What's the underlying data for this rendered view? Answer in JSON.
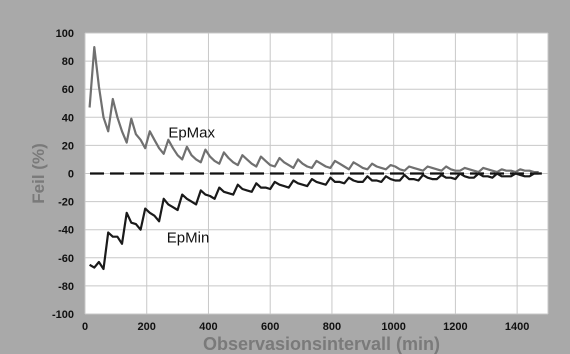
{
  "chart_data": {
    "type": "line",
    "title": "",
    "xlabel": "Observasionsintervall (min)",
    "ylabel": "Feil (%)",
    "xlim": [
      0,
      1500
    ],
    "ylim": [
      -100,
      100
    ],
    "xticks": [
      0,
      200,
      400,
      600,
      800,
      1000,
      1200,
      1400
    ],
    "yticks": [
      -100,
      -80,
      -60,
      -40,
      -20,
      0,
      20,
      40,
      60,
      80,
      100
    ],
    "grid": true,
    "legend": "none",
    "colors": {
      "epmax": "#707070",
      "epmin": "#1a1a1a",
      "zero_line": "#111111",
      "background": "#a9a9a9",
      "plot_area": "#ffffff",
      "grid": "#c8c8c8"
    },
    "annotations": [
      {
        "text": "EpMax",
        "x": 270,
        "y": 30
      },
      {
        "text": "EpMin",
        "x": 265,
        "y": -45
      }
    ],
    "zero_line": {
      "y": 0,
      "style": "dashed"
    },
    "series": [
      {
        "key": "epmax",
        "x": [
          15,
          30,
          45,
          60,
          75,
          90,
          105,
          120,
          135,
          150,
          165,
          180,
          195,
          210,
          225,
          240,
          255,
          270,
          285,
          300,
          315,
          330,
          345,
          360,
          375,
          390,
          405,
          420,
          435,
          450,
          465,
          480,
          495,
          510,
          525,
          540,
          555,
          570,
          585,
          600,
          615,
          630,
          645,
          660,
          675,
          690,
          705,
          720,
          735,
          750,
          765,
          780,
          795,
          810,
          825,
          840,
          855,
          870,
          885,
          900,
          915,
          930,
          945,
          960,
          975,
          990,
          1005,
          1020,
          1035,
          1050,
          1065,
          1080,
          1095,
          1110,
          1125,
          1140,
          1155,
          1170,
          1185,
          1200,
          1215,
          1230,
          1245,
          1260,
          1275,
          1290,
          1305,
          1320,
          1335,
          1350,
          1365,
          1380,
          1395,
          1410,
          1425,
          1440,
          1455,
          1470
        ],
        "values": [
          47,
          90,
          62,
          40,
          30,
          53,
          40,
          30,
          22,
          39,
          28,
          24,
          18,
          30,
          24,
          18,
          14,
          24,
          18,
          13,
          10,
          19,
          13,
          10,
          8,
          17,
          12,
          9,
          7,
          15,
          11,
          8,
          6,
          13,
          10,
          7,
          5,
          12,
          9,
          6,
          5,
          11,
          8,
          6,
          4,
          10,
          7,
          5,
          4,
          9,
          7,
          5,
          4,
          9,
          7,
          5,
          3,
          8,
          6,
          4,
          3,
          7,
          5,
          4,
          3,
          6,
          5,
          3,
          2,
          5,
          4,
          3,
          2,
          5,
          4,
          3,
          2,
          5,
          3,
          2,
          2,
          4,
          3,
          2,
          1,
          4,
          3,
          2,
          1,
          3,
          2,
          2,
          1,
          3,
          2,
          2,
          1,
          1
        ]
      },
      {
        "key": "epmin",
        "x": [
          15,
          30,
          45,
          60,
          75,
          90,
          105,
          120,
          135,
          150,
          165,
          180,
          195,
          210,
          225,
          240,
          255,
          270,
          285,
          300,
          315,
          330,
          345,
          360,
          375,
          390,
          405,
          420,
          435,
          450,
          465,
          480,
          495,
          510,
          525,
          540,
          555,
          570,
          585,
          600,
          615,
          630,
          645,
          660,
          675,
          690,
          705,
          720,
          735,
          750,
          765,
          780,
          795,
          810,
          825,
          840,
          855,
          870,
          885,
          900,
          915,
          930,
          945,
          960,
          975,
          990,
          1005,
          1020,
          1035,
          1050,
          1065,
          1080,
          1095,
          1110,
          1125,
          1140,
          1155,
          1170,
          1185,
          1200,
          1215,
          1230,
          1245,
          1260,
          1275,
          1290,
          1305,
          1320,
          1335,
          1350,
          1365,
          1380,
          1395,
          1410,
          1425,
          1440,
          1455,
          1470
        ],
        "values": [
          -65,
          -67,
          -63,
          -68,
          -42,
          -45,
          -45,
          -50,
          -28,
          -35,
          -36,
          -40,
          -25,
          -28,
          -30,
          -34,
          -18,
          -22,
          -24,
          -26,
          -15,
          -18,
          -20,
          -22,
          -12,
          -15,
          -16,
          -18,
          -10,
          -13,
          -14,
          -15,
          -8,
          -11,
          -12,
          -13,
          -7,
          -10,
          -10,
          -11,
          -6,
          -8,
          -9,
          -10,
          -5,
          -7,
          -8,
          -9,
          -4,
          -6,
          -7,
          -8,
          -3,
          -6,
          -6,
          -7,
          -3,
          -5,
          -6,
          -6,
          -2,
          -5,
          -5,
          -6,
          -2,
          -4,
          -5,
          -5,
          -1,
          -4,
          -4,
          -5,
          -1,
          -3,
          -4,
          -4,
          -1,
          -3,
          -3,
          -4,
          0,
          -2,
          -3,
          -3,
          0,
          -2,
          -2,
          -3,
          0,
          -2,
          -2,
          -2,
          0,
          -1,
          -2,
          -2,
          0,
          0
        ]
      }
    ]
  }
}
